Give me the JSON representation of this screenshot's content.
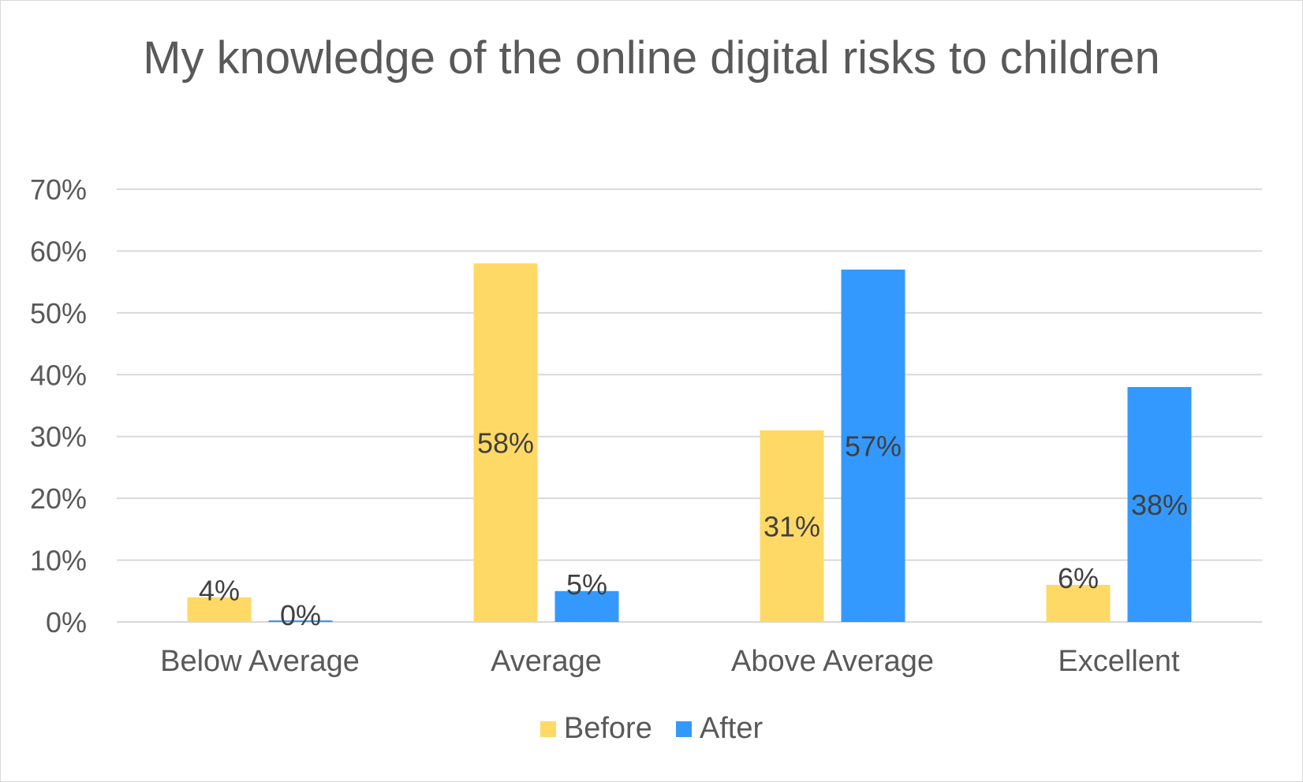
{
  "chart_data": {
    "type": "bar",
    "title": "My knowledge of the online digital risks to children",
    "categories": [
      "Below Average",
      "Average",
      "Above Average",
      "Excellent"
    ],
    "series": [
      {
        "name": "Before",
        "color": "#FFD966",
        "values": [
          4,
          58,
          31,
          6
        ],
        "labels": [
          "4%",
          "58%",
          "31%",
          "6%"
        ]
      },
      {
        "name": "After",
        "color": "#3399FF",
        "values": [
          0,
          5,
          57,
          38
        ],
        "labels": [
          "0%",
          "5%",
          "57%",
          "38%"
        ]
      }
    ],
    "yticks": [
      "0%",
      "10%",
      "20%",
      "30%",
      "40%",
      "50%",
      "60%",
      "70%"
    ],
    "ylim": [
      0,
      70
    ],
    "grid": true,
    "legend": "bottom"
  }
}
